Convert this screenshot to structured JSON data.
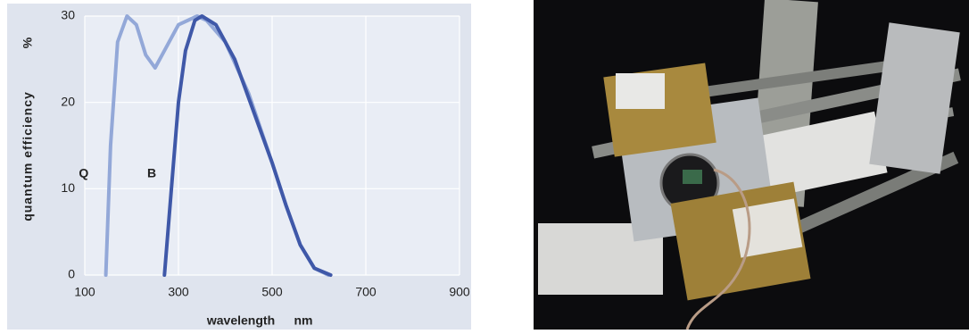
{
  "chart_data": {
    "type": "line",
    "x_label": "wavelength",
    "x_unit": "nm",
    "y_label": "quantum efficiency",
    "y_unit": "%",
    "xlim": [
      100,
      900
    ],
    "xticks": [
      100,
      300,
      500,
      700,
      900
    ],
    "ylim": [
      0,
      30
    ],
    "yticks": [
      0,
      10,
      20,
      30
    ],
    "grid": true,
    "series": [
      {
        "name": "Q",
        "color": "#93a8d8",
        "x": [
          145,
          155,
          170,
          190,
          210,
          230,
          250,
          270,
          300,
          340,
          360,
          400,
          450,
          500,
          530,
          560,
          590,
          620
        ],
        "values": [
          0,
          15,
          27,
          30,
          29,
          25.5,
          24,
          26,
          29,
          30,
          29.5,
          27,
          21,
          13,
          8,
          3.5,
          0.8,
          0
        ]
      },
      {
        "name": "B",
        "color": "#3f58a8",
        "x": [
          270,
          285,
          300,
          315,
          335,
          350,
          380,
          420,
          460,
          500,
          530,
          560,
          590,
          625
        ],
        "values": [
          0,
          10,
          20,
          26,
          29.5,
          30,
          29,
          25,
          19,
          13,
          8,
          3.5,
          0.8,
          0
        ]
      }
    ]
  }
}
